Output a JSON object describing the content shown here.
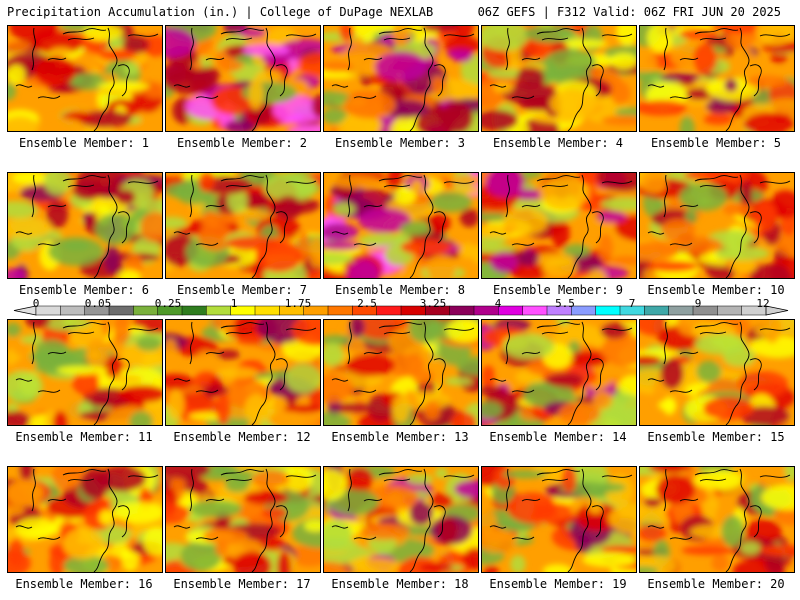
{
  "header": {
    "left_title": "Precipitation Accumulation (in.) | College of DuPage NEXLAB",
    "right_title": "06Z GEFS | F312 Valid: 06Z FRI JUN 20 2025"
  },
  "members": [
    {
      "label": "Ensemble Member: 1",
      "intensity": 0.55
    },
    {
      "label": "Ensemble Member: 2",
      "intensity": 0.85
    },
    {
      "label": "Ensemble Member: 3",
      "intensity": 0.7
    },
    {
      "label": "Ensemble Member: 4",
      "intensity": 0.55
    },
    {
      "label": "Ensemble Member: 5",
      "intensity": 0.6
    },
    {
      "label": "Ensemble Member: 6",
      "intensity": 0.8
    },
    {
      "label": "Ensemble Member: 7",
      "intensity": 0.55
    },
    {
      "label": "Ensemble Member: 8",
      "intensity": 0.85
    },
    {
      "label": "Ensemble Member: 9",
      "intensity": 0.75
    },
    {
      "label": "Ensemble Member: 10",
      "intensity": 0.45
    },
    {
      "label": "Ensemble Member: 11",
      "intensity": 0.55
    },
    {
      "label": "Ensemble Member: 12",
      "intensity": 0.65
    },
    {
      "label": "Ensemble Member: 13",
      "intensity": 0.6
    },
    {
      "label": "Ensemble Member: 14",
      "intensity": 0.75
    },
    {
      "label": "Ensemble Member: 15",
      "intensity": 0.55
    },
    {
      "label": "Ensemble Member: 16",
      "intensity": 0.5
    },
    {
      "label": "Ensemble Member: 17",
      "intensity": 0.6
    },
    {
      "label": "Ensemble Member: 18",
      "intensity": 0.8
    },
    {
      "label": "Ensemble Member: 19",
      "intensity": 0.6
    },
    {
      "label": "Ensemble Member: 20",
      "intensity": 0.5
    }
  ],
  "colorbar": {
    "tick_labels": [
      "0",
      "0.05",
      "0.25",
      "1",
      "1.75",
      "2.5",
      "3.25",
      "4",
      "5.5",
      "7",
      "9",
      "12"
    ],
    "colors": [
      "#d9d9d9",
      "#bdbdbd",
      "#969696",
      "#6e6e6e",
      "#7ab13c",
      "#4f9a2a",
      "#2f7d1f",
      "#b2dd3c",
      "#ffff00",
      "#ffdf00",
      "#ffbf00",
      "#ff9f00",
      "#ff7700",
      "#ff4a00",
      "#ff1a1a",
      "#d80000",
      "#a80020",
      "#8b005a",
      "#b0008c",
      "#e000e0",
      "#ff50ff",
      "#c080ff",
      "#8a9cff",
      "#00ffff",
      "#40d8e0",
      "#3fa8a8",
      "#8fa0a0",
      "#909090",
      "#b4b4b4",
      "#d0d0d0"
    ]
  },
  "precip_palette": [
    "#7ab13c",
    "#b2dd3c",
    "#ffff00",
    "#ffbf00",
    "#ff9f00",
    "#ff7700",
    "#ff3a00",
    "#e00000",
    "#b00020",
    "#8b005a",
    "#c000a0",
    "#ff50ff",
    "#00e0ff"
  ]
}
